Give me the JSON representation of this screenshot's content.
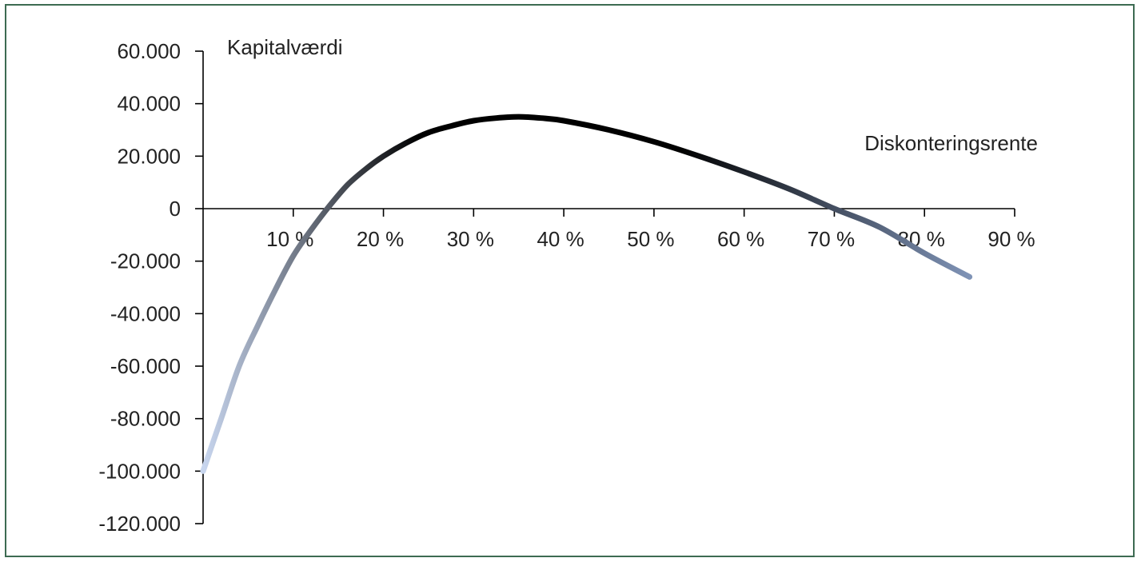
{
  "chart_data": {
    "type": "line",
    "title": "",
    "xlabel": "Diskonteringsrente",
    "ylabel": "Kapitalværdi",
    "x_tick_labels": [
      "10 %",
      "20 %",
      "30 %",
      "40 %",
      "50 %",
      "60 %",
      "70 %",
      "80 %",
      "90 %"
    ],
    "x_ticks": [
      10,
      20,
      30,
      40,
      50,
      60,
      70,
      80,
      90
    ],
    "y_tick_labels": [
      "60.000",
      "40.000",
      "20.000",
      "0",
      "-20.000",
      "-40.000",
      "-60.000",
      "-80.000",
      "-100.000",
      "-120.000"
    ],
    "y_ticks": [
      60000,
      40000,
      20000,
      0,
      -20000,
      -40000,
      -60000,
      -80000,
      -100000,
      -120000
    ],
    "xlim": [
      0,
      90
    ],
    "ylim": [
      -120000,
      60000
    ],
    "grid": false,
    "legend": "none",
    "series": [
      {
        "x": [
          0,
          2,
          4,
          6,
          8,
          10,
          12,
          14,
          16,
          18,
          20,
          22.5,
          25,
          27.5,
          30,
          32.5,
          35,
          37.5,
          40,
          45,
          50,
          55,
          60,
          65,
          70,
          75,
          80,
          85
        ],
        "values": [
          -100000,
          -80000,
          -60000,
          -45000,
          -31000,
          -18000,
          -8000,
          1000,
          9000,
          15000,
          20000,
          25000,
          29000,
          31500,
          33500,
          34500,
          35000,
          34500,
          33500,
          30000,
          25500,
          20000,
          14000,
          7500,
          0,
          -7000,
          -17000,
          -26000
        ]
      }
    ],
    "colors": {
      "line_start": "#c8d6ef",
      "line_mid": "#000000",
      "line_end": "#7f93b6",
      "frame": "#3d6b52",
      "axis": "#000000"
    }
  }
}
